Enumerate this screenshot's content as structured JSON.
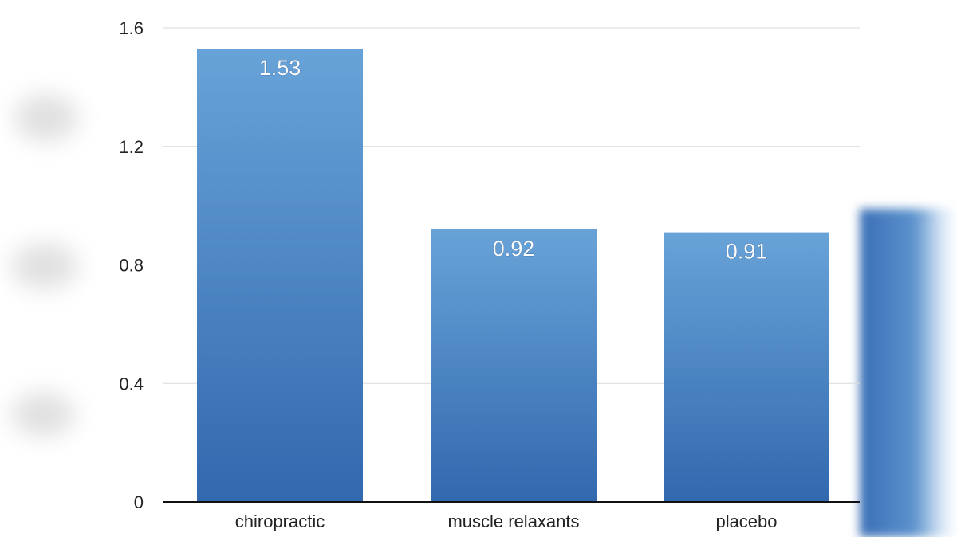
{
  "chart_data": {
    "type": "bar",
    "categories": [
      "chiropractic",
      "muscle relaxants",
      "placebo"
    ],
    "values": [
      1.53,
      0.92,
      0.91
    ],
    "data_labels": [
      "1.53",
      "0.92",
      "0.91"
    ],
    "title": "",
    "xlabel": "",
    "ylabel": "",
    "ylim": [
      0,
      1.6
    ],
    "yticks": [
      0,
      0.4,
      0.8,
      1.2,
      1.6
    ],
    "ytick_labels": [
      "0",
      "0.4",
      "0.8",
      "1.2",
      "1.6"
    ],
    "grid": true,
    "bar_color_top": "#68a3d8",
    "bar_color_bottom": "#3268ae"
  }
}
